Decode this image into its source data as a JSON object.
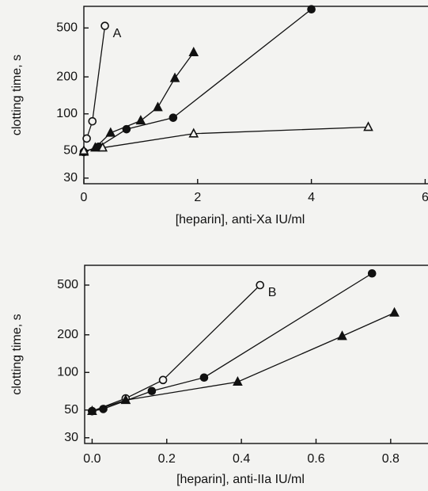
{
  "chart_data": [
    {
      "type": "line",
      "annotation": "A",
      "y_label": "clotting time, s",
      "x_label": "[heparin], anti-Xa IU/ml",
      "log_y": true,
      "xlim": [
        0,
        6.05
      ],
      "ylim": [
        27,
        750
      ],
      "xticks": [
        0,
        2,
        4,
        6
      ],
      "yticks": [
        30,
        50,
        100,
        200,
        500
      ],
      "series": [
        {
          "marker": "circle-open",
          "color": "#111111",
          "x": [
            0.05,
            0.15,
            0.37
          ],
          "values": [
            63,
            87,
            520
          ]
        },
        {
          "marker": "triangle",
          "color": "#111111",
          "x": [
            0,
            0.2,
            0.47,
            1.0,
            1.3,
            1.6,
            1.93
          ],
          "values": [
            49,
            53,
            70,
            88,
            113,
            195,
            316
          ]
        },
        {
          "marker": "circle",
          "color": "#111111",
          "x": [
            0,
            0.26,
            0.75,
            1.57,
            4.0
          ],
          "values": [
            49,
            54,
            75,
            93,
            710
          ]
        },
        {
          "marker": "triangle-open",
          "color": "#111111",
          "x": [
            0,
            0.33,
            1.93,
            5.0
          ],
          "values": [
            50,
            53,
            69,
            78
          ]
        }
      ]
    },
    {
      "type": "line",
      "annotation": "B",
      "y_label": "clotting time, s",
      "x_label": "[heparin], anti-IIa IU/ml",
      "log_y": true,
      "xlim": [
        -0.02,
        0.9
      ],
      "ylim": [
        27,
        720
      ],
      "xticks": [
        {
          "value": 0,
          "label": "0.0"
        },
        0.2,
        0.4,
        0.6,
        0.8
      ],
      "yticks": [
        30,
        50,
        100,
        200,
        500
      ],
      "series": [
        {
          "marker": "circle-open",
          "color": "#111111",
          "x": [
            0,
            0.09,
            0.19,
            0.45
          ],
          "values": [
            49,
            62,
            87,
            500
          ]
        },
        {
          "marker": "circle",
          "color": "#111111",
          "x": [
            0,
            0.03,
            0.16,
            0.3,
            0.75
          ],
          "values": [
            49,
            51,
            71,
            91,
            620
          ]
        },
        {
          "marker": "triangle",
          "color": "#111111",
          "x": [
            0,
            0.09,
            0.39,
            0.67,
            0.81
          ],
          "values": [
            49,
            60,
            84,
            195,
            300
          ]
        }
      ]
    }
  ]
}
